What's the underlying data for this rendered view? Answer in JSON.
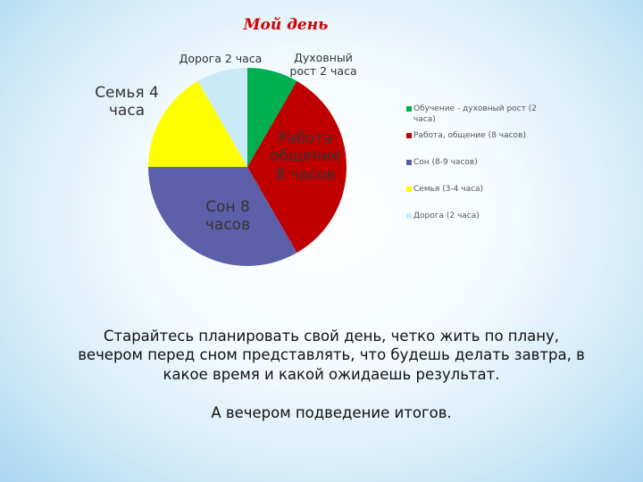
{
  "chart_data": {
    "type": "pie",
    "title": "Мой день",
    "categories": [
      "Обучение - духовный рост (2 часа)",
      "Работа, общение (8 часов)",
      "Сон (8-9 часов)",
      "Семья (3-4 часа)",
      "Дорога (2 часа)"
    ],
    "values": [
      2,
      8,
      8,
      4,
      2
    ],
    "value_labels": [
      "Духовный рост 2 часа",
      "Работа общение 8 часов",
      "Сон 8 часов",
      "Семья 4 часа",
      "Дорога 2 часа"
    ],
    "colors": [
      "#00b050",
      "#c00000",
      "#5b60a8",
      "#ffff00",
      "#c9eaf6"
    ]
  },
  "body": {
    "paragraphs": [
      "Старайтесь планировать свой день, четко жить по плану, вечером перед сном представлять, что будешь делать завтра, в какое время и какой ожидаешь результат.",
      "А вечером подведение итогов."
    ]
  }
}
